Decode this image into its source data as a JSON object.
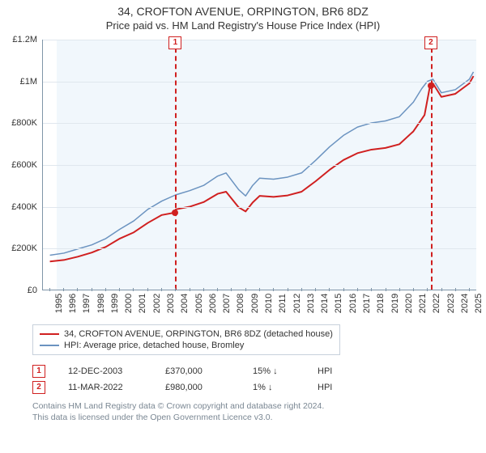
{
  "title": "34, CROFTON AVENUE, ORPINGTON, BR6 8DZ",
  "subtitle": "Price paid vs. HM Land Registry's House Price Index (HPI)",
  "chart": {
    "type": "line",
    "background_color": "#ffffff",
    "plot_area_fill": "rgba(230,240,250,0.55)",
    "plot_area_start_year": 1995.5,
    "axis_color": "#7f95a8",
    "grid_color": "#e0e7ee",
    "xlim": [
      1994.5,
      2025.5
    ],
    "ylim": [
      0,
      1200000
    ],
    "yticks": [
      0,
      200000,
      400000,
      600000,
      800000,
      1000000,
      1200000
    ],
    "ytick_labels": [
      "£0",
      "£200K",
      "£400K",
      "£600K",
      "£800K",
      "£1M",
      "£1.2M"
    ],
    "xticks": [
      1995,
      1996,
      1997,
      1998,
      1999,
      2000,
      2001,
      2002,
      2003,
      2004,
      2005,
      2006,
      2007,
      2008,
      2009,
      2010,
      2011,
      2012,
      2013,
      2014,
      2015,
      2016,
      2017,
      2018,
      2019,
      2020,
      2021,
      2022,
      2023,
      2024,
      2025
    ],
    "series": [
      {
        "name": "hpi",
        "label": "HPI: Average price, detached house, Bromley",
        "color": "#6b93c0",
        "line_width": 1.5,
        "x": [
          1995,
          1996,
          1997,
          1998,
          1999,
          2000,
          2001,
          2002,
          2003,
          2004,
          2005,
          2006,
          2007,
          2007.6,
          2008.5,
          2009,
          2009.5,
          2010,
          2011,
          2012,
          2013,
          2014,
          2015,
          2016,
          2017,
          2018,
          2019,
          2020,
          2021,
          2021.6,
          2022,
          2022.4,
          2023,
          2024,
          2025,
          2025.3
        ],
        "y": [
          165000,
          175000,
          195000,
          215000,
          245000,
          290000,
          330000,
          385000,
          425000,
          455000,
          475000,
          500000,
          545000,
          560000,
          480000,
          450000,
          500000,
          535000,
          530000,
          540000,
          560000,
          620000,
          685000,
          740000,
          780000,
          800000,
          810000,
          830000,
          900000,
          965000,
          1000000,
          1010000,
          945000,
          960000,
          1010000,
          1045000
        ]
      },
      {
        "name": "address",
        "label": "34, CROFTON AVENUE, ORPINGTON, BR6 8DZ (detached house)",
        "color": "#d02020",
        "line_width": 2,
        "x": [
          1995,
          1996,
          1997,
          1998,
          1999,
          2000,
          2001,
          2002,
          2003,
          2003.95,
          2004,
          2005,
          2006,
          2007,
          2007.6,
          2008.5,
          2009,
          2009.5,
          2010,
          2011,
          2012,
          2013,
          2014,
          2015,
          2016,
          2017,
          2018,
          2019,
          2020,
          2021,
          2021.8,
          2022.2,
          2022.4,
          2023,
          2024,
          2025,
          2025.3
        ],
        "y": [
          135000,
          142000,
          158000,
          178000,
          205000,
          245000,
          275000,
          320000,
          358000,
          370000,
          385000,
          398000,
          420000,
          460000,
          470000,
          395000,
          375000,
          418000,
          450000,
          445000,
          452000,
          470000,
          520000,
          575000,
          622000,
          655000,
          672000,
          680000,
          698000,
          760000,
          838000,
          980000,
          990000,
          925000,
          940000,
          990000,
          1025000
        ]
      }
    ],
    "sale_markers": [
      {
        "n": "1",
        "x": 2003.95,
        "y": 370000,
        "color": "#d02020"
      },
      {
        "n": "2",
        "x": 2022.2,
        "y": 980000,
        "color": "#d02020"
      }
    ]
  },
  "legend": {
    "border_color": "#c7d0db",
    "items": [
      {
        "color": "#d02020",
        "label": "34, CROFTON AVENUE, ORPINGTON, BR6 8DZ (detached house)"
      },
      {
        "color": "#6b93c0",
        "label": "HPI: Average price, detached house, Bromley"
      }
    ]
  },
  "sales": [
    {
      "n": "1",
      "date": "12-DEC-2003",
      "price": "£370,000",
      "diff": "15%",
      "arrow": "↓",
      "suffix": "HPI"
    },
    {
      "n": "2",
      "date": "11-MAR-2022",
      "price": "£980,000",
      "diff": "1%",
      "arrow": "↓",
      "suffix": "HPI"
    }
  ],
  "footer": {
    "line1": "Contains HM Land Registry data © Crown copyright and database right 2024.",
    "line2": "This data is licensed under the Open Government Licence v3.0."
  }
}
